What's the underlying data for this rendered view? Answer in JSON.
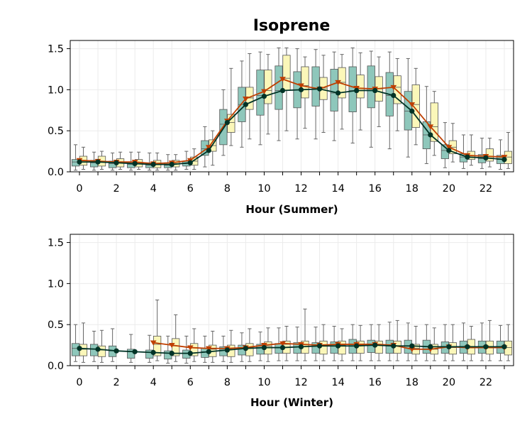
{
  "title": "Isoprene",
  "colors": {
    "box_a": "#8ec7bb",
    "box_b": "#fbf7b9",
    "box_edge": "#555555",
    "whisker": "#666666",
    "line_a": "#003326",
    "line_b": "#bf3f00",
    "grid": "#ebebeb"
  },
  "chart_data": [
    {
      "type": "box",
      "xlabel": "Hour (Summer)",
      "ylim": [
        0,
        1.6
      ],
      "yticks": [
        "0.0",
        "0.5",
        "1.0",
        "1.5"
      ],
      "x_tick_labels": [
        "0",
        "2",
        "4",
        "6",
        "8",
        "10",
        "12",
        "14",
        "16",
        "18",
        "20",
        "22"
      ],
      "grid": true,
      "series": [
        {
          "marker": "circle",
          "means": [
            0.12,
            0.12,
            0.11,
            0.1,
            0.09,
            0.09,
            0.11,
            0.26,
            0.6,
            0.82,
            0.92,
            0.99,
            1.0,
            1.01,
            0.96,
            0.99,
            0.99,
            0.93,
            0.74,
            0.45,
            0.26,
            0.18,
            0.17,
            0.15
          ],
          "boxes": [
            [
              0.02,
              0.07,
              0.12,
              0.15,
              0.33
            ],
            [
              0.02,
              0.06,
              0.11,
              0.14,
              0.24
            ],
            [
              0.02,
              0.05,
              0.1,
              0.13,
              0.23
            ],
            [
              0.02,
              0.05,
              0.09,
              0.12,
              0.24
            ],
            [
              0.02,
              0.05,
              0.08,
              0.11,
              0.23
            ],
            [
              0.02,
              0.05,
              0.08,
              0.11,
              0.21
            ],
            [
              0.03,
              0.07,
              0.1,
              0.13,
              0.25
            ],
            [
              0.06,
              0.2,
              0.28,
              0.38,
              0.55
            ],
            [
              0.2,
              0.33,
              0.58,
              0.76,
              1.0
            ],
            [
              0.3,
              0.61,
              0.82,
              1.03,
              1.35
            ],
            [
              0.33,
              0.69,
              0.93,
              1.24,
              1.46
            ],
            [
              0.38,
              0.76,
              0.99,
              1.29,
              1.51
            ],
            [
              0.4,
              0.78,
              1.0,
              1.22,
              1.5
            ],
            [
              0.4,
              0.8,
              1.01,
              1.28,
              1.49
            ],
            [
              0.38,
              0.74,
              0.96,
              1.25,
              1.46
            ],
            [
              0.35,
              0.73,
              0.99,
              1.28,
              1.51
            ],
            [
              0.3,
              0.78,
              0.99,
              1.29,
              1.47
            ],
            [
              0.28,
              0.68,
              0.93,
              1.21,
              1.46
            ],
            [
              0.18,
              0.51,
              0.74,
              0.98,
              1.38
            ],
            [
              0.1,
              0.28,
              0.45,
              0.61,
              1.04
            ],
            [
              0.05,
              0.16,
              0.26,
              0.33,
              0.6
            ],
            [
              0.04,
              0.12,
              0.18,
              0.22,
              0.45
            ],
            [
              0.04,
              0.11,
              0.16,
              0.21,
              0.41
            ],
            [
              0.03,
              0.1,
              0.15,
              0.2,
              0.39
            ]
          ]
        },
        {
          "marker": "triangle-down",
          "means": [
            0.14,
            0.13,
            0.12,
            0.12,
            0.1,
            0.11,
            0.14,
            0.3,
            0.62,
            0.89,
            0.98,
            1.13,
            1.05,
            1.01,
            1.09,
            1.02,
            1.01,
            1.03,
            0.82,
            0.55,
            0.3,
            0.2,
            0.19,
            0.18
          ],
          "boxes": [
            [
              0.03,
              0.08,
              0.14,
              0.19,
              0.3
            ],
            [
              0.03,
              0.07,
              0.13,
              0.19,
              0.25
            ],
            [
              0.03,
              0.06,
              0.12,
              0.16,
              0.24
            ],
            [
              0.03,
              0.06,
              0.11,
              0.15,
              0.24
            ],
            [
              0.02,
              0.05,
              0.1,
              0.14,
              0.23
            ],
            [
              0.02,
              0.06,
              0.1,
              0.14,
              0.21
            ],
            [
              0.03,
              0.08,
              0.13,
              0.18,
              0.28
            ],
            [
              0.08,
              0.25,
              0.32,
              0.39,
              0.5
            ],
            [
              0.32,
              0.48,
              0.6,
              0.7,
              1.26
            ],
            [
              0.4,
              0.76,
              0.9,
              1.03,
              1.44
            ],
            [
              0.46,
              0.83,
              0.99,
              1.24,
              1.43
            ],
            [
              0.5,
              0.99,
              1.14,
              1.42,
              1.51
            ],
            [
              0.53,
              0.9,
              1.05,
              1.28,
              1.4
            ],
            [
              0.48,
              0.88,
              1.02,
              1.15,
              1.42
            ],
            [
              0.52,
              0.9,
              1.09,
              1.27,
              1.43
            ],
            [
              0.51,
              0.9,
              1.02,
              1.18,
              1.45
            ],
            [
              0.55,
              0.86,
              1.01,
              1.16,
              1.4
            ],
            [
              0.5,
              0.83,
              1.03,
              1.17,
              1.38
            ],
            [
              0.33,
              0.54,
              0.82,
              1.06,
              1.26
            ],
            [
              0.2,
              0.37,
              0.55,
              0.84,
              0.98
            ],
            [
              0.12,
              0.22,
              0.3,
              0.38,
              0.59
            ],
            [
              0.08,
              0.15,
              0.2,
              0.25,
              0.45
            ],
            [
              0.06,
              0.13,
              0.19,
              0.28,
              0.41
            ],
            [
              0.04,
              0.1,
              0.18,
              0.25,
              0.48
            ]
          ]
        }
      ]
    },
    {
      "type": "box",
      "xlabel": "Hour (Winter)",
      "ylim": [
        0,
        1.6
      ],
      "yticks": [
        "0.0",
        "0.5",
        "1.0",
        "1.5"
      ],
      "x_tick_labels": [
        "0",
        "2",
        "4",
        "6",
        "8",
        "10",
        "12",
        "14",
        "16",
        "18",
        "20",
        "22"
      ],
      "grid": true,
      "series": [
        {
          "marker": "circle",
          "means": [
            0.21,
            0.2,
            0.18,
            0.17,
            0.16,
            0.15,
            0.15,
            0.17,
            0.19,
            0.21,
            0.22,
            0.22,
            0.23,
            0.24,
            0.24,
            0.24,
            0.25,
            0.24,
            0.24,
            0.23,
            0.23,
            0.23,
            0.23,
            0.23
          ],
          "boxes": [
            [
              0.05,
              0.12,
              0.21,
              0.27,
              0.5
            ],
            [
              0.05,
              0.12,
              0.2,
              0.26,
              0.42
            ],
            [
              0.05,
              0.11,
              0.18,
              0.24,
              0.45
            ],
            [
              0.04,
              0.09,
              0.17,
              0.2,
              0.38
            ],
            [
              0.04,
              0.09,
              0.16,
              0.19,
              0.37
            ],
            [
              0.03,
              0.08,
              0.15,
              0.18,
              0.36
            ],
            [
              0.03,
              0.09,
              0.15,
              0.19,
              0.36
            ],
            [
              0.04,
              0.1,
              0.17,
              0.21,
              0.36
            ],
            [
              0.05,
              0.12,
              0.19,
              0.23,
              0.36
            ],
            [
              0.05,
              0.13,
              0.21,
              0.25,
              0.4
            ],
            [
              0.06,
              0.14,
              0.22,
              0.26,
              0.41
            ],
            [
              0.06,
              0.15,
              0.22,
              0.27,
              0.46
            ],
            [
              0.06,
              0.15,
              0.23,
              0.28,
              0.47
            ],
            [
              0.06,
              0.15,
              0.24,
              0.28,
              0.47
            ],
            [
              0.06,
              0.15,
              0.24,
              0.29,
              0.48
            ],
            [
              0.06,
              0.15,
              0.24,
              0.32,
              0.5
            ],
            [
              0.06,
              0.16,
              0.25,
              0.31,
              0.5
            ],
            [
              0.06,
              0.15,
              0.24,
              0.31,
              0.53
            ],
            [
              0.06,
              0.15,
              0.24,
              0.31,
              0.52
            ],
            [
              0.06,
              0.15,
              0.23,
              0.31,
              0.5
            ],
            [
              0.06,
              0.15,
              0.23,
              0.29,
              0.5
            ],
            [
              0.06,
              0.15,
              0.23,
              0.3,
              0.52
            ],
            [
              0.06,
              0.15,
              0.23,
              0.3,
              0.52
            ],
            [
              0.06,
              0.15,
              0.23,
              0.3,
              0.49
            ]
          ]
        },
        {
          "marker": "triangle-down",
          "means": [
            null,
            null,
            null,
            null,
            0.28,
            0.25,
            0.22,
            0.21,
            0.21,
            0.22,
            0.25,
            0.27,
            0.26,
            0.25,
            0.26,
            0.26,
            0.26,
            0.25,
            0.2,
            0.2,
            0.23,
            0.22,
            0.22,
            0.22
          ],
          "boxes": [
            [
              0.04,
              0.12,
              0.2,
              0.26,
              0.52
            ],
            [
              0.04,
              0.11,
              0.19,
              0.24,
              0.43
            ],
            null,
            null,
            [
              0.06,
              0.12,
              0.26,
              0.36,
              0.8
            ],
            [
              0.05,
              0.12,
              0.24,
              0.33,
              0.62
            ],
            [
              0.05,
              0.12,
              0.22,
              0.27,
              0.45
            ],
            [
              0.04,
              0.11,
              0.2,
              0.25,
              0.42
            ],
            [
              0.04,
              0.11,
              0.2,
              0.25,
              0.43
            ],
            [
              0.05,
              0.12,
              0.22,
              0.27,
              0.45
            ],
            [
              0.05,
              0.14,
              0.24,
              0.29,
              0.46
            ],
            [
              0.06,
              0.15,
              0.26,
              0.3,
              0.48
            ],
            [
              0.06,
              0.15,
              0.26,
              0.3,
              0.69
            ],
            [
              0.06,
              0.14,
              0.25,
              0.3,
              0.5
            ],
            [
              0.06,
              0.14,
              0.25,
              0.3,
              0.45
            ],
            [
              0.06,
              0.15,
              0.25,
              0.3,
              0.49
            ],
            [
              0.06,
              0.15,
              0.25,
              0.3,
              0.5
            ],
            [
              0.06,
              0.15,
              0.24,
              0.3,
              0.55
            ],
            [
              0.06,
              0.14,
              0.21,
              0.26,
              0.48
            ],
            [
              0.06,
              0.14,
              0.2,
              0.26,
              0.46
            ],
            [
              0.06,
              0.14,
              0.22,
              0.28,
              0.5
            ],
            [
              0.06,
              0.14,
              0.22,
              0.32,
              0.48
            ],
            [
              0.06,
              0.14,
              0.22,
              0.3,
              0.55
            ],
            [
              0.06,
              0.13,
              0.22,
              0.3,
              0.5
            ]
          ]
        }
      ]
    }
  ]
}
